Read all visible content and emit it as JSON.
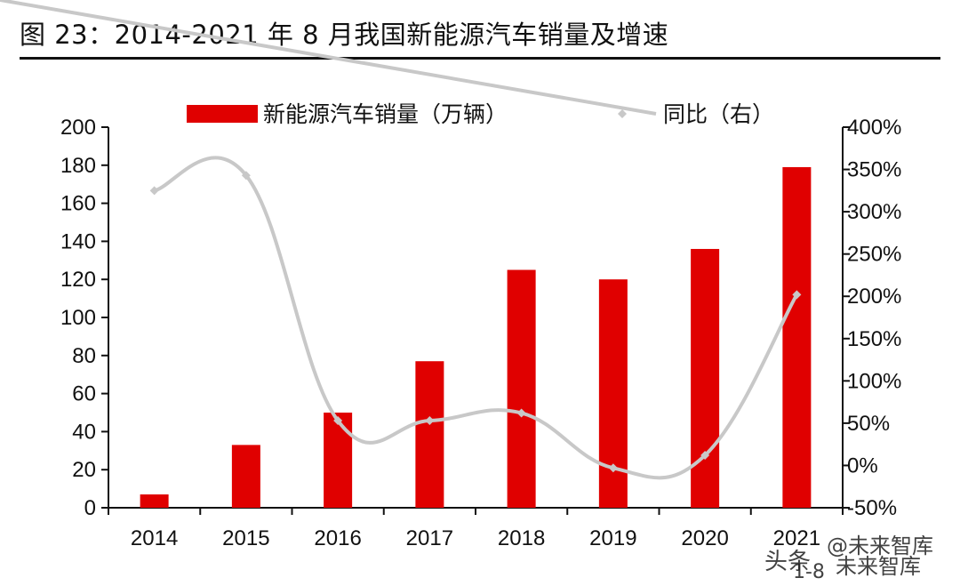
{
  "header": {
    "title": "图 23：2014-2021 年 8 月我国新能源汽车销量及增速"
  },
  "watermark": {
    "text1": "头条",
    "text2": "@未来智库",
    "text3": "1-8",
    "text4": "未来智库"
  },
  "chart_data": {
    "type": "bar",
    "categories": [
      "2014",
      "2015",
      "2016",
      "2017",
      "2018",
      "2019",
      "2020",
      "2021"
    ],
    "series": [
      {
        "name": "新能源汽车销量（万辆）",
        "type": "bar",
        "axis": "left",
        "color": "#e00000",
        "values": [
          7,
          33,
          50,
          77,
          125,
          120,
          136,
          179
        ]
      },
      {
        "name": "同比（右）",
        "type": "line",
        "axis": "right",
        "color": "#c8c8c8",
        "values": [
          325,
          343,
          53,
          53,
          62,
          -3,
          12,
          202
        ]
      }
    ],
    "left_axis": {
      "min": 0,
      "max": 200,
      "step": 20
    },
    "right_axis": {
      "min": -50,
      "max": 400,
      "step": 50,
      "format": "percent"
    },
    "legend": "top-center",
    "grid": false
  }
}
